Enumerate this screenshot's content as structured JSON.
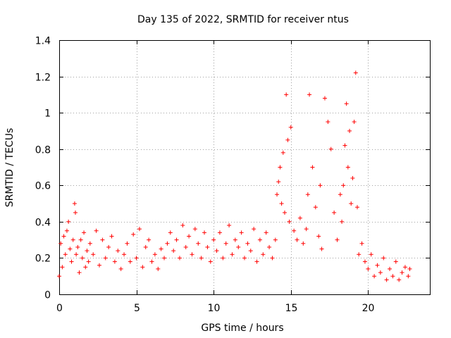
{
  "chart_data": {
    "type": "scatter",
    "title": "Day 135 of 2022, SRMTID for receiver ntus",
    "xlabel": "GPS time / hours",
    "ylabel": "SRMTID / TECUs",
    "xlim": [
      0,
      24
    ],
    "ylim": [
      0,
      1.4
    ],
    "xticks": [
      0,
      5,
      10,
      15,
      20
    ],
    "xtick_labels": [
      "0",
      "5",
      "10",
      "15",
      "20"
    ],
    "yticks": [
      0,
      0.2,
      0.4,
      0.6,
      0.8,
      1,
      1.2,
      1.4
    ],
    "ytick_labels": [
      "0",
      "0.2",
      "0.4",
      "0.6",
      "0.8",
      "1",
      "1.2",
      "1.4"
    ],
    "grid": true,
    "marker": "+",
    "series": [
      {
        "name": "SRMTID",
        "color": "#ff0000",
        "x": [
          0.0,
          0.1,
          0.2,
          0.3,
          0.4,
          0.5,
          0.6,
          0.7,
          0.8,
          0.9,
          1.0,
          1.05,
          1.1,
          1.2,
          1.3,
          1.4,
          1.5,
          1.6,
          1.7,
          1.8,
          1.9,
          2.0,
          2.2,
          2.4,
          2.6,
          2.8,
          3.0,
          3.2,
          3.4,
          3.6,
          3.8,
          4.0,
          4.2,
          4.4,
          4.6,
          4.8,
          5.0,
          5.2,
          5.4,
          5.6,
          5.8,
          6.0,
          6.2,
          6.4,
          6.6,
          6.8,
          7.0,
          7.2,
          7.4,
          7.6,
          7.8,
          8.0,
          8.2,
          8.4,
          8.6,
          8.8,
          9.0,
          9.2,
          9.4,
          9.6,
          9.8,
          10.0,
          10.2,
          10.4,
          10.6,
          10.8,
          11.0,
          11.2,
          11.4,
          11.6,
          11.8,
          12.0,
          12.2,
          12.4,
          12.6,
          12.8,
          13.0,
          13.2,
          13.4,
          13.6,
          13.8,
          14.0,
          14.1,
          14.2,
          14.3,
          14.4,
          14.5,
          14.6,
          14.7,
          14.8,
          14.9,
          15.0,
          15.2,
          15.4,
          15.6,
          15.8,
          16.0,
          16.1,
          16.2,
          16.4,
          16.6,
          16.8,
          16.9,
          17.0,
          17.2,
          17.4,
          17.6,
          17.8,
          18.0,
          18.2,
          18.3,
          18.4,
          18.5,
          18.6,
          18.7,
          18.8,
          18.9,
          19.0,
          19.1,
          19.2,
          19.3,
          19.4,
          19.6,
          19.8,
          20.0,
          20.2,
          20.4,
          20.6,
          20.8,
          21.0,
          21.2,
          21.4,
          21.6,
          21.8,
          22.0,
          22.2,
          22.4,
          22.6,
          22.7
        ],
        "y": [
          0.1,
          0.28,
          0.15,
          0.32,
          0.22,
          0.35,
          0.4,
          0.25,
          0.18,
          0.3,
          0.5,
          0.45,
          0.22,
          0.26,
          0.12,
          0.3,
          0.2,
          0.34,
          0.15,
          0.24,
          0.18,
          0.28,
          0.22,
          0.35,
          0.16,
          0.3,
          0.2,
          0.26,
          0.32,
          0.18,
          0.24,
          0.14,
          0.22,
          0.28,
          0.18,
          0.33,
          0.2,
          0.36,
          0.15,
          0.26,
          0.3,
          0.18,
          0.22,
          0.14,
          0.25,
          0.2,
          0.28,
          0.34,
          0.24,
          0.3,
          0.2,
          0.38,
          0.26,
          0.32,
          0.22,
          0.36,
          0.28,
          0.2,
          0.34,
          0.26,
          0.18,
          0.3,
          0.24,
          0.34,
          0.2,
          0.28,
          0.38,
          0.22,
          0.3,
          0.26,
          0.34,
          0.2,
          0.28,
          0.24,
          0.36,
          0.18,
          0.3,
          0.22,
          0.34,
          0.26,
          0.2,
          0.3,
          0.55,
          0.62,
          0.7,
          0.5,
          0.78,
          0.45,
          1.1,
          0.85,
          0.4,
          0.92,
          0.35,
          0.3,
          0.42,
          0.28,
          0.36,
          0.55,
          1.1,
          0.7,
          0.48,
          0.32,
          0.6,
          0.25,
          1.08,
          0.95,
          0.8,
          0.45,
          0.3,
          0.55,
          0.4,
          0.6,
          0.82,
          1.05,
          0.7,
          0.9,
          0.5,
          0.64,
          0.95,
          1.22,
          0.48,
          0.22,
          0.28,
          0.18,
          0.14,
          0.22,
          0.1,
          0.16,
          0.12,
          0.2,
          0.08,
          0.14,
          0.1,
          0.18,
          0.08,
          0.12,
          0.15,
          0.1,
          0.14
        ]
      }
    ]
  }
}
